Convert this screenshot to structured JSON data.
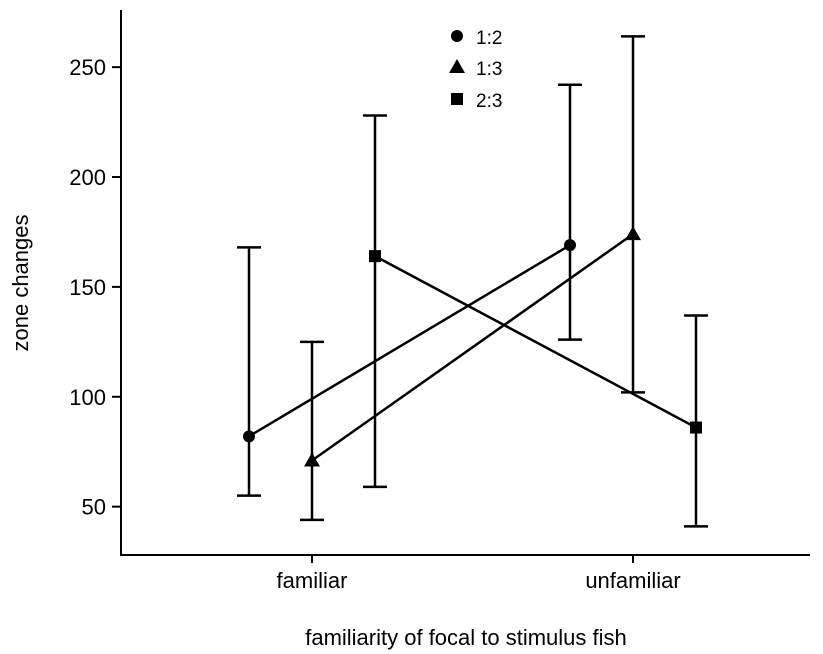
{
  "chart_data": {
    "type": "line",
    "xlabel": "familiarity of focal to stimulus fish",
    "ylabel": "zone changes",
    "categories": [
      "familiar",
      "unfamiliar"
    ],
    "ylim": [
      28,
      276
    ],
    "yticks": [
      50,
      100,
      150,
      200,
      250
    ],
    "grid": false,
    "legend_position": "top-center",
    "series": [
      {
        "name": "1:2",
        "marker": "circle",
        "values": [
          82,
          169
        ],
        "err_low": [
          55,
          126
        ],
        "err_high": [
          168,
          242
        ]
      },
      {
        "name": "1:3",
        "marker": "triangle",
        "values": [
          71,
          174
        ],
        "err_low": [
          44,
          102
        ],
        "err_high": [
          125,
          264
        ]
      },
      {
        "name": "2:3",
        "marker": "square",
        "values": [
          164,
          86
        ],
        "err_low": [
          59,
          41
        ],
        "err_high": [
          228,
          137
        ]
      }
    ],
    "colors": {
      "line": "#000000",
      "background": "#ffffff"
    }
  }
}
